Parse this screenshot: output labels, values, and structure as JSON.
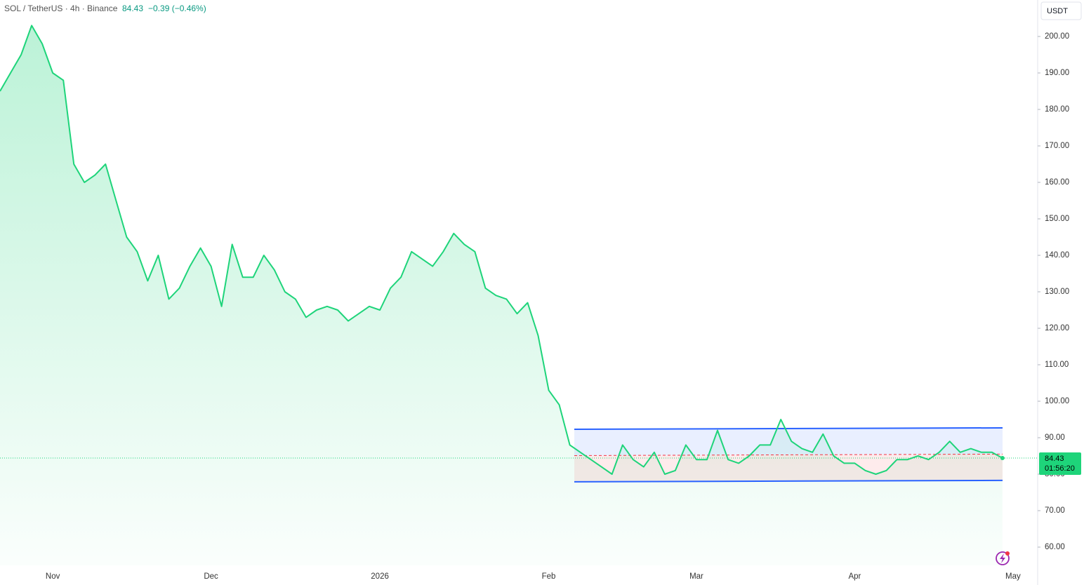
{
  "header": {
    "symbol": "SOL / TetherUS · 4h · Binance",
    "change": "−0.39 (−0.46%)",
    "currency": "USDT",
    "countdown": "01:56:20"
  },
  "chart_data": {
    "type": "area",
    "color": "#1ed47a",
    "categories": [
      null,
      null,
      null,
      null,
      null,
      "Nov",
      null,
      null,
      null,
      null,
      null,
      null,
      null,
      null,
      null,
      null,
      null,
      null,
      null,
      null,
      "Dec",
      null,
      null,
      null,
      null,
      null,
      null,
      null,
      null,
      null,
      null,
      null,
      null,
      null,
      null,
      null,
      "2026",
      null,
      null,
      null,
      null,
      null,
      null,
      null,
      null,
      null,
      null,
      null,
      null,
      null,
      null,
      null,
      "Feb",
      null,
      null,
      null,
      null,
      null,
      null,
      null,
      null,
      null,
      null,
      null,
      null,
      null,
      "Mar",
      null,
      null,
      null,
      null,
      null,
      null,
      null,
      null,
      null,
      null,
      null,
      null,
      null,
      null,
      "Apr",
      null,
      null,
      null,
      null,
      null,
      null,
      null,
      null,
      null,
      null,
      null,
      null,
      null,
      null,
      "May"
    ],
    "series": [
      {
        "name": "SOL / TetherUS",
        "color": "#1ed47a",
        "values": [
          185,
          190,
          195,
          203,
          198,
          190,
          188,
          165,
          160,
          162,
          165,
          155,
          145,
          141,
          133,
          140,
          128,
          131,
          137,
          142,
          137,
          126,
          143,
          134,
          134,
          140,
          136,
          130,
          128,
          123,
          125,
          126,
          125,
          122,
          124,
          126,
          125,
          131,
          134,
          141,
          139,
          137,
          141,
          146,
          143,
          141,
          131,
          129,
          128,
          124,
          127,
          118,
          103,
          99,
          88,
          86,
          84,
          82,
          80,
          88,
          84,
          82,
          86,
          80,
          81,
          88,
          84,
          84,
          92,
          84,
          83,
          85,
          88,
          88,
          95,
          89,
          87,
          86,
          91,
          85,
          83,
          83,
          81,
          80,
          81,
          84,
          84,
          85,
          84,
          86,
          89,
          86,
          87,
          86,
          86,
          84.43,
          null
        ]
      }
    ],
    "ylim": [
      55,
      210
    ],
    "yticks": [
      {
        "value": 60,
        "label": "60.00"
      },
      {
        "value": 70,
        "label": "70.00"
      },
      {
        "value": 80,
        "label": "80.00"
      },
      {
        "value": 90,
        "label": "90.00"
      },
      {
        "value": 100,
        "label": "100.00"
      },
      {
        "value": 110,
        "label": "110.00"
      },
      {
        "value": 120,
        "label": "120.00"
      },
      {
        "value": 130,
        "label": "130.00"
      },
      {
        "value": 140,
        "label": "140.00"
      },
      {
        "value": 150,
        "label": "150.00"
      },
      {
        "value": 160,
        "label": "160.00"
      },
      {
        "value": 170,
        "label": "170.00"
      },
      {
        "value": 180,
        "label": "180.00"
      },
      {
        "value": 190,
        "label": "190.00"
      },
      {
        "value": 200,
        "label": "200.00"
      }
    ],
    "channel": {
      "upper": [
        92.3,
        92.7
      ],
      "lower": [
        77.9,
        78.3
      ]
    }
  }
}
